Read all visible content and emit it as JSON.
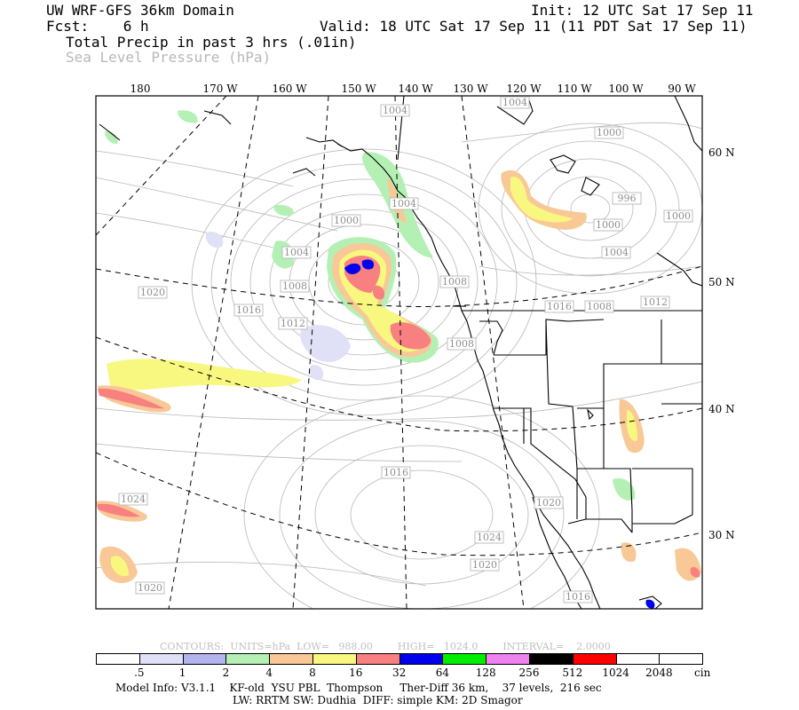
{
  "header": {
    "model": "UW WRF-GFS 36km Domain",
    "init": "Init: 12 UTC Sat 17 Sep 11",
    "fcst": "Fcst:    6 h",
    "valid": "Valid: 18 UTC Sat 17 Sep 11 (11 PDT Sat 17 Sep 11)",
    "field1": "Total Precip in past 3 hrs (.01in)",
    "field2": "Sea Level Pressure (hPa)"
  },
  "longitude_labels": [
    "180",
    "170 W",
    "160 W",
    "150 W",
    "140 W",
    "130 W",
    "120 W",
    "110 W",
    "100 W",
    "90 W"
  ],
  "latitude_labels": [
    "60 N",
    "50 N",
    "40 N",
    "30 N"
  ],
  "isobar_labels": [
    "1004",
    "1000",
    "1004",
    "1000",
    "1004",
    "1000",
    "996",
    "1000",
    "1004",
    "1004",
    "1008",
    "1020",
    "1016",
    "1012",
    "1008",
    "1012",
    "1008",
    "1008",
    "1016",
    "1024",
    "1024",
    "1020",
    "1020",
    "1016",
    "1020",
    "1016"
  ],
  "contour_info": "CONTOURS:  UNITS=hPa  LOW=   988.00        HIGH=   1024.0        INTERVAL=    2.0000",
  "scale": {
    "labels": [
      ".5",
      "1",
      "2",
      "4",
      "8",
      "16",
      "32",
      "64",
      "128",
      "256",
      "512",
      "1024",
      "2048",
      "cin"
    ],
    "colors": [
      "#ffffff",
      "#e0e0f6",
      "#b4b4ee",
      "#b4f0b4",
      "#f8c896",
      "#f8f880",
      "#f88080",
      "#0000ee",
      "#00ee00",
      "#ee82ee",
      "#000000",
      "#ff0000",
      "#ffffff",
      "#ffffff"
    ]
  },
  "footer": {
    "line1": "Model Info: V3.1.1    KF-old  YSU PBL  Thompson     Ther-Diff 36 km,    37 levels,  216 sec",
    "line2": "LW: RRTM SW: Dudhia  DIFF: simple KM: 2D Smagor"
  }
}
